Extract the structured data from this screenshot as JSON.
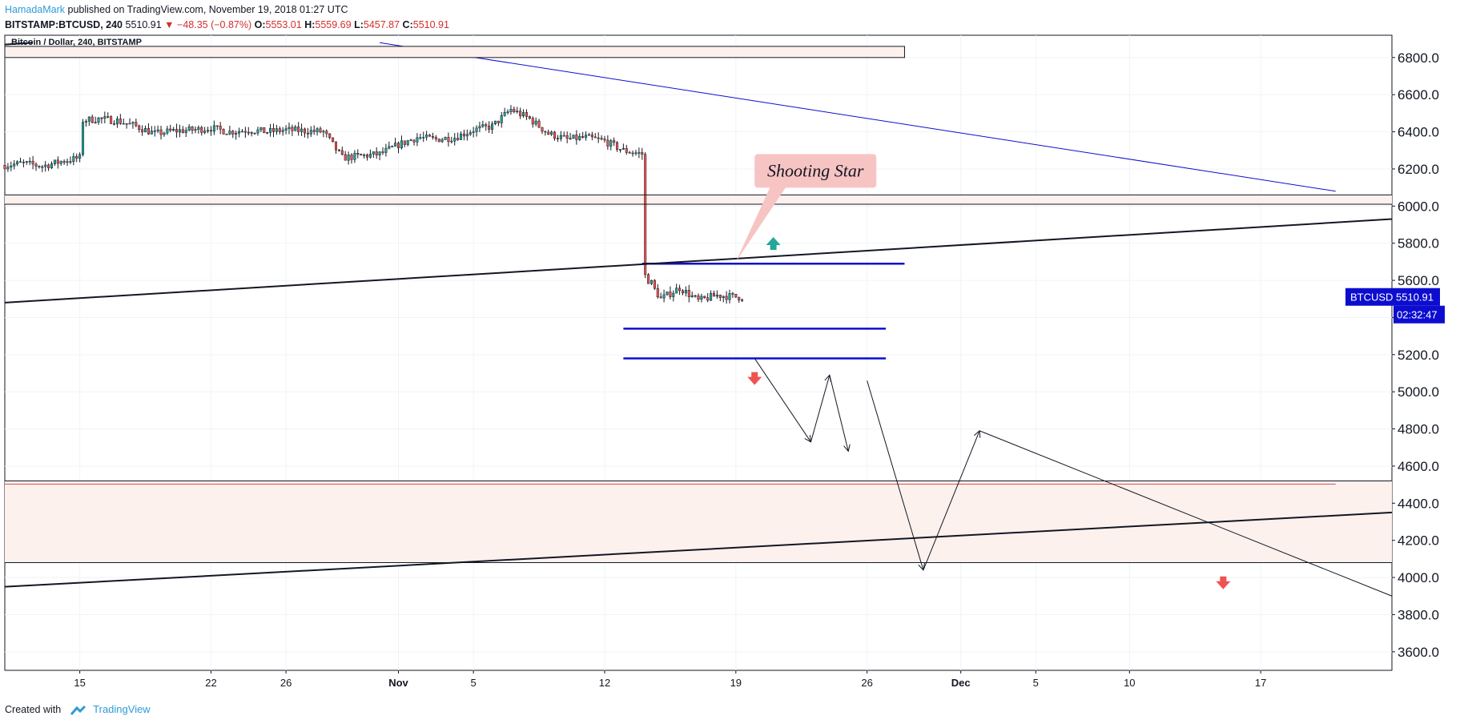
{
  "header": {
    "author": "HamadaMark",
    "published": "published on TradingView.com, November 19, 2018 01:27 UTC",
    "symbol": "BITSTAMP:BTCUSD, 240",
    "last": "5510.91",
    "change": "▼ −48.35 (−0.87%)",
    "o_label": "O:",
    "o": "5553.01",
    "h_label": "H:",
    "h": "5559.69",
    "l_label": "L:",
    "l": "5457.87",
    "c_label": "C:",
    "c": "5510.91"
  },
  "footer": {
    "created_with": "Created with",
    "brand": "TradingView"
  },
  "colors": {
    "up": "#26a69a",
    "down": "#ef5350",
    "accent": "#0d0dd0",
    "zone": "#fdf1ee",
    "bubble": "#f7c4c4"
  },
  "chart_data": {
    "type": "candlestick",
    "title": "Bitcoin / Dollar, 240, BITSTAMP",
    "price_label": {
      "symbol": "BTCUSD",
      "price": "5510.91",
      "countdown": "02:32:47"
    },
    "ylim": [
      3500,
      6920
    ],
    "y_ticks": [
      "6800.0",
      "6600.0",
      "6400.0",
      "6200.0",
      "6000.0",
      "5800.0",
      "5600.0",
      "5400.0",
      "5200.0",
      "5000.0",
      "4800.0",
      "4600.0",
      "4400.0",
      "4200.0",
      "4000.0",
      "3800.0",
      "3600.0"
    ],
    "x_ticks": [
      "15",
      "22",
      "26",
      "Nov",
      "5",
      "12",
      "19",
      "26",
      "Dec",
      "5",
      "10",
      "17"
    ],
    "x_tick_dates": [
      "2018-10-15",
      "2018-10-22",
      "2018-10-26",
      "2018-11-01",
      "2018-11-05",
      "2018-11-12",
      "2018-11-19",
      "2018-11-26",
      "2018-12-01",
      "2018-12-05",
      "2018-12-10",
      "2018-12-17"
    ],
    "bar_interval": "240",
    "xlim": [
      "2018-10-11",
      "2018-12-24"
    ],
    "series_close": [
      [
        "2018-10-11",
        6220
      ],
      [
        "2018-10-12",
        6230
      ],
      [
        "2018-10-13",
        6215
      ],
      [
        "2018-10-14",
        6240
      ],
      [
        "2018-10-15",
        6260
      ],
      [
        "2018-10-15",
        6460
      ],
      [
        "2018-10-16",
        6470
      ],
      [
        "2018-10-17",
        6460
      ],
      [
        "2018-10-18",
        6430
      ],
      [
        "2018-10-19",
        6390
      ],
      [
        "2018-10-20",
        6405
      ],
      [
        "2018-10-21",
        6410
      ],
      [
        "2018-10-22",
        6420
      ],
      [
        "2018-10-23",
        6400
      ],
      [
        "2018-10-24",
        6410
      ],
      [
        "2018-10-25",
        6400
      ],
      [
        "2018-10-26",
        6410
      ],
      [
        "2018-10-27",
        6405
      ],
      [
        "2018-10-28",
        6400
      ],
      [
        "2018-10-29",
        6260
      ],
      [
        "2018-10-30",
        6270
      ],
      [
        "2018-10-31",
        6280
      ],
      [
        "2018-11-01",
        6330
      ],
      [
        "2018-11-02",
        6370
      ],
      [
        "2018-11-03",
        6360
      ],
      [
        "2018-11-04",
        6370
      ],
      [
        "2018-11-05",
        6410
      ],
      [
        "2018-11-06",
        6430
      ],
      [
        "2018-11-07",
        6520
      ],
      [
        "2018-11-08",
        6470
      ],
      [
        "2018-11-09",
        6390
      ],
      [
        "2018-11-10",
        6360
      ],
      [
        "2018-11-11",
        6370
      ],
      [
        "2018-11-12",
        6350
      ],
      [
        "2018-11-13",
        6300
      ],
      [
        "2018-11-14",
        6280
      ],
      [
        "2018-11-14",
        5650
      ],
      [
        "2018-11-15",
        5500
      ],
      [
        "2018-11-16",
        5560
      ],
      [
        "2018-11-17",
        5490
      ],
      [
        "2018-11-18",
        5520
      ],
      [
        "2018-11-19",
        5510.91
      ]
    ],
    "horizontal_levels": [
      6060,
      6010,
      5690,
      5340,
      5180,
      4520,
      4080
    ],
    "support_zone": [
      4080,
      4520
    ],
    "resistance_zone": [
      6010,
      6060
    ],
    "annotation": "Shooting Star"
  }
}
